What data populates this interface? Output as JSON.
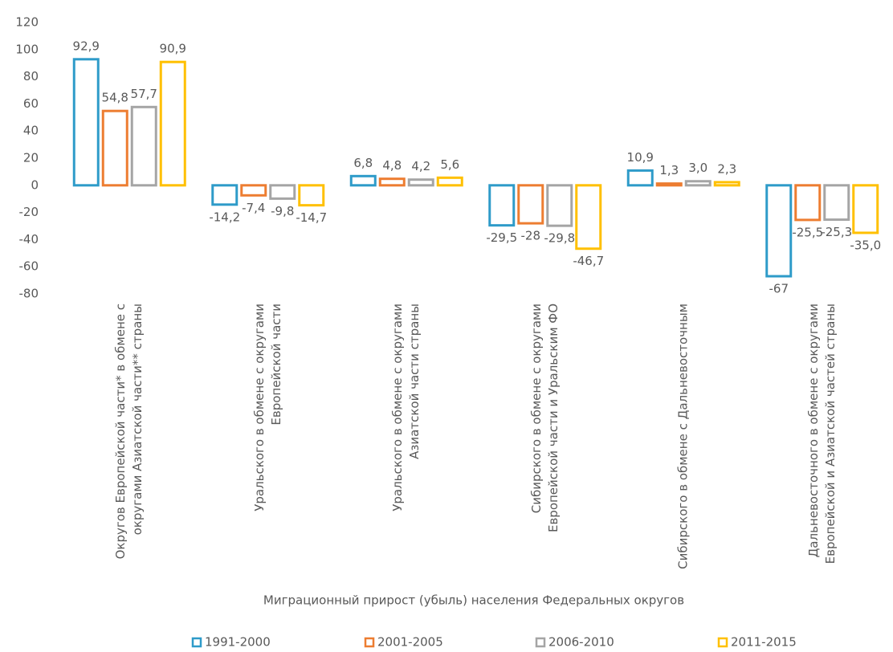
{
  "chart_data": {
    "type": "bar",
    "x_label": "Миграционный прирост (убыль) населения Федеральных округов",
    "categories": [
      "Округов Европейской части* в обмене с округами Азиатской части** страны",
      "Уральского в обмене с округами Европейской части",
      "Уральского в обмене с округами Азиатской части страны",
      "Сибирского в обмене с округами Европейской части и Уральским ФО",
      "Сибирского в обмене с Дальневосточным",
      "Дальневосточного в обмене с округами Европейской и Азиатской частей страны"
    ],
    "series": [
      {
        "name": "1991-2000",
        "color": "#2e9bc9",
        "values": [
          92.9,
          -14.2,
          6.8,
          -29.5,
          10.9,
          -67
        ],
        "value_labels": [
          "92,9",
          "-14,2",
          "6,8",
          "-29,5",
          "10,9",
          "-67"
        ]
      },
      {
        "name": "2001-2005",
        "color": "#ed7d31",
        "values": [
          54.8,
          -7.4,
          4.8,
          -28,
          1.3,
          -25.5
        ],
        "value_labels": [
          "54,8",
          "-7,4",
          "4,8",
          "-28",
          "1,3",
          "-25,5"
        ]
      },
      {
        "name": "2006-2010",
        "color": "#a5a5a5",
        "values": [
          57.7,
          -9.8,
          4.2,
          -29.8,
          3.0,
          -25.3
        ],
        "value_labels": [
          "57,7",
          "-9,8",
          "4,2",
          "-29,8",
          "3,0",
          "-25,3"
        ]
      },
      {
        "name": "2011-2015",
        "color": "#ffc000",
        "values": [
          90.9,
          -14.7,
          5.6,
          -46.7,
          2.3,
          -35.0
        ],
        "value_labels": [
          "90,9",
          "-14,7",
          "5,6",
          "-46,7",
          "2,3",
          "-35,0"
        ]
      }
    ],
    "ylim": [
      -80,
      120
    ],
    "yticks": [
      -80,
      -60,
      -40,
      -20,
      0,
      20,
      40,
      60,
      80,
      100,
      120
    ],
    "legend": "bottom"
  }
}
